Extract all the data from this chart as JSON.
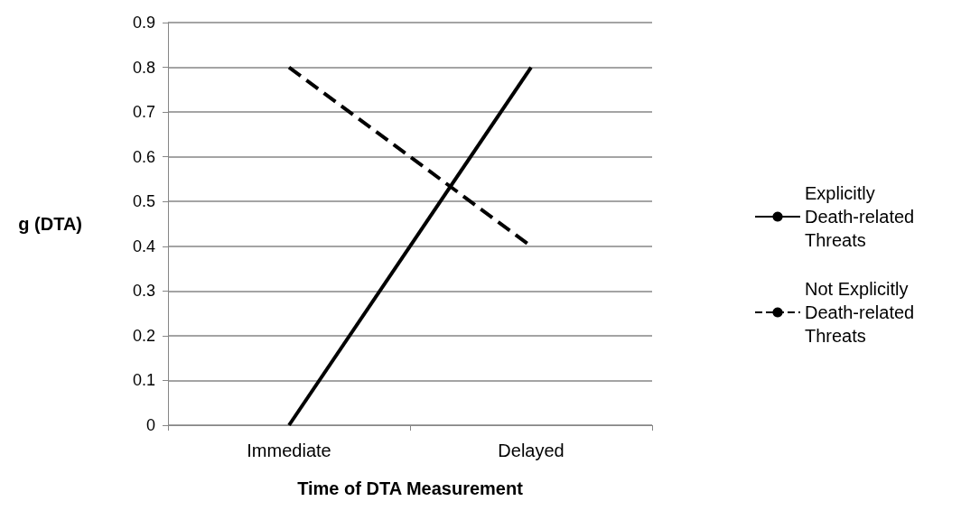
{
  "chart_data": {
    "type": "line",
    "xlabel": "Time of DTA Measurement",
    "ylabel": "g (DTA)",
    "categories": [
      "Immediate",
      "Delayed"
    ],
    "series": [
      {
        "name": "Explicitly Death-related Threats",
        "color": "#000000",
        "line_style": "solid",
        "values": [
          0,
          0.8
        ]
      },
      {
        "name": "Not Explicitly Death-related Threats",
        "color": "#000000",
        "line_style": "dashed",
        "values": [
          0.8,
          0.4
        ]
      }
    ],
    "ylim": [
      0,
      0.9
    ],
    "yticks": [
      0,
      0.1,
      0.2,
      0.3,
      0.4,
      0.5,
      0.6,
      0.7,
      0.8,
      0.9
    ],
    "grid": "y",
    "legend": "right",
    "marker": "none"
  }
}
